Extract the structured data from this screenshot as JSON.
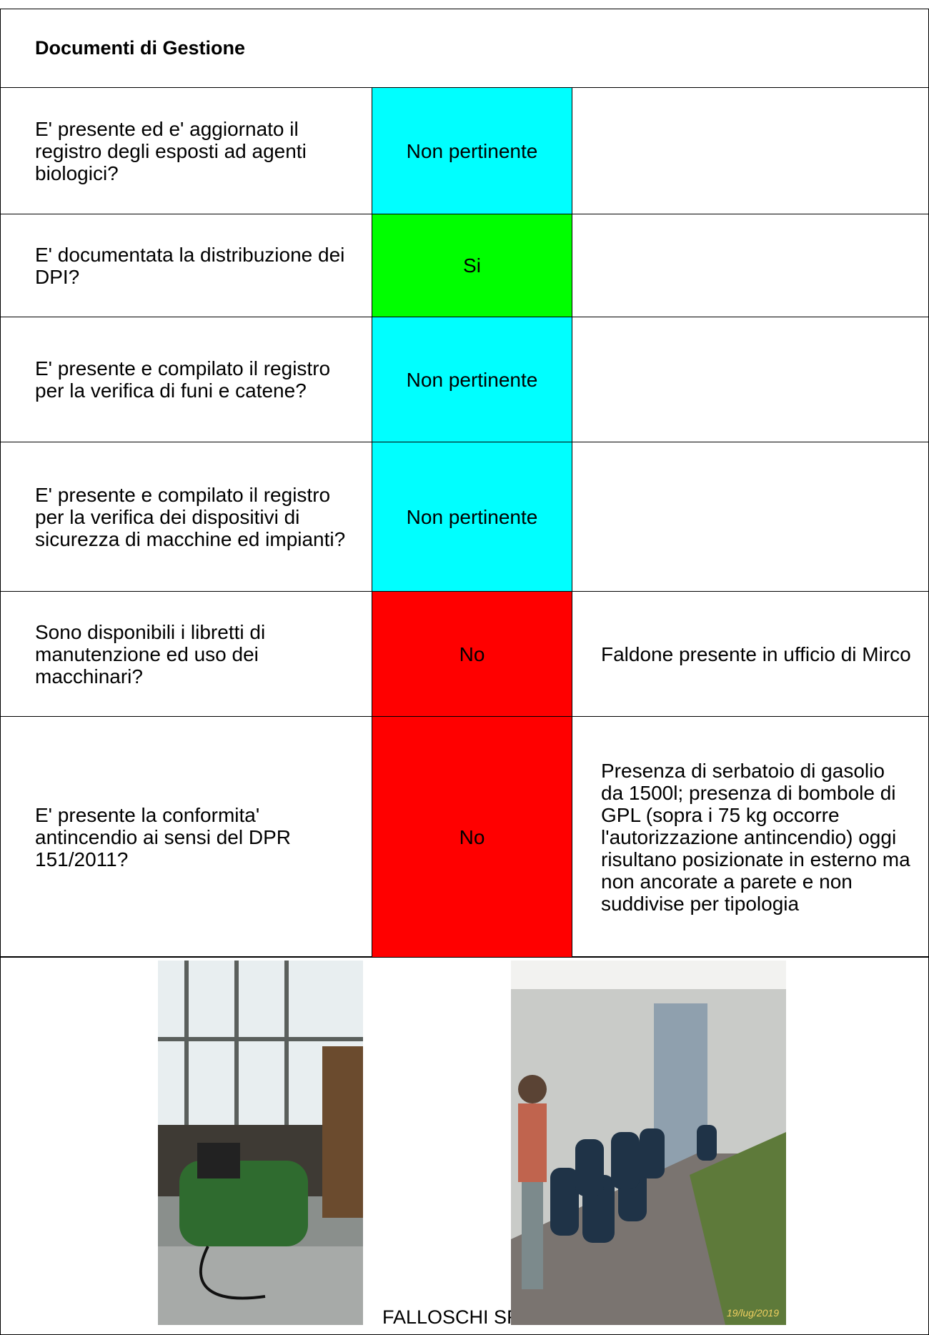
{
  "header": {
    "title": "Documenti di Gestione"
  },
  "table": {
    "rows": [
      {
        "question": "E' presente ed e' aggiornato il registro degli esposti ad agenti biologici?",
        "status": "Non pertinente",
        "status_color": "#00ffff",
        "note": ""
      },
      {
        "question": "E' documentata la distribuzione dei DPI?",
        "status": "Si",
        "status_color": "#00ff00",
        "note": ""
      },
      {
        "question": "E' presente e compilato il registro per la verifica di funi e catene?",
        "status": "Non pertinente",
        "status_color": "#00ffff",
        "note": ""
      },
      {
        "question": "E' presente e compilato il registro per la verifica dei dispositivi di sicurezza di macchine ed impianti?",
        "status": "Non pertinente",
        "status_color": "#00ffff",
        "note": ""
      },
      {
        "question": "Sono disponibili i libretti di manutenzione ed uso dei macchinari?",
        "status": "No",
        "status_color": "#ff0000",
        "note": "Faldone presente in ufficio di Mirco"
      },
      {
        "question": "E' presente la conformita' antincendio ai sensi del DPR 151/2011?",
        "status": "No",
        "status_color": "#ff0000",
        "note": "Presenza di serbatoio di gasolio da 1500l; presenza di bombole di GPL (sopra i 75 kg occorre l'autorizzazione antincendio) oggi risultano posizionate in esterno ma non ancorate a parete e non suddivise per tipologia"
      }
    ]
  },
  "photos": {
    "timestamp": "19/lug/2019"
  },
  "footer": {
    "company": "FALLOSCHI SRLS"
  }
}
